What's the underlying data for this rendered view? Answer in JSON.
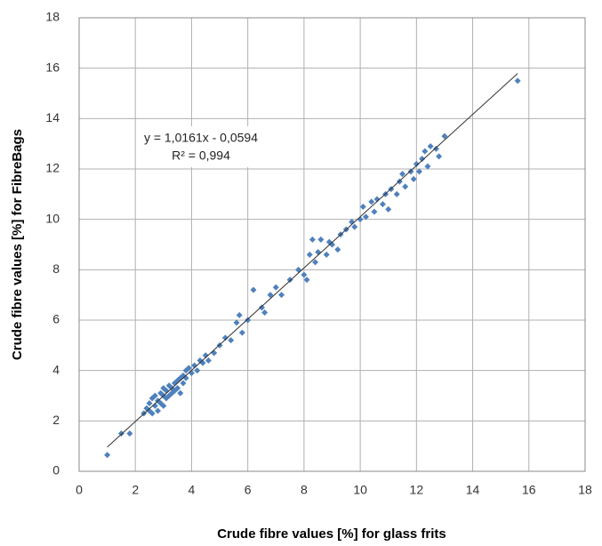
{
  "chart_data": {
    "type": "scatter",
    "x_label": "Crude fibre values [%] for glass frits",
    "y_label": "Crude fibre values [%] for FibreBags",
    "annotation": [
      "y = 1,0161x - 0,0594",
      "R² = 0,994"
    ],
    "color": "#4f81bd",
    "grid": true,
    "xlim": [
      0,
      18
    ],
    "ylim": [
      0,
      18
    ],
    "xticks": [
      0,
      2,
      4,
      6,
      8,
      10,
      12,
      14,
      16,
      18
    ],
    "yticks": [
      0,
      2,
      4,
      6,
      8,
      10,
      12,
      14,
      16,
      18
    ],
    "x": [
      1.0,
      1.5,
      1.8,
      2.3,
      2.4,
      2.5,
      2.5,
      2.6,
      2.6,
      2.7,
      2.7,
      2.8,
      2.8,
      2.9,
      2.9,
      3.0,
      3.0,
      3.0,
      3.1,
      3.1,
      3.2,
      3.2,
      3.3,
      3.3,
      3.4,
      3.4,
      3.5,
      3.5,
      3.6,
      3.6,
      3.7,
      3.7,
      3.8,
      3.8,
      3.9,
      4.0,
      4.1,
      4.2,
      4.3,
      4.4,
      4.5,
      4.6,
      4.8,
      5.0,
      5.2,
      5.4,
      5.6,
      5.7,
      5.8,
      6.0,
      6.2,
      6.5,
      6.6,
      6.8,
      7.0,
      7.2,
      7.5,
      7.8,
      8.0,
      8.1,
      8.2,
      8.3,
      8.4,
      8.5,
      8.6,
      8.8,
      8.9,
      9.0,
      9.2,
      9.3,
      9.5,
      9.7,
      9.8,
      10.0,
      10.1,
      10.2,
      10.4,
      10.5,
      10.6,
      10.8,
      10.9,
      11.0,
      11.1,
      11.3,
      11.4,
      11.5,
      11.6,
      11.8,
      11.9,
      12.0,
      12.1,
      12.2,
      12.3,
      12.4,
      12.5,
      12.7,
      12.8,
      13.0,
      15.6
    ],
    "values": [
      0.65,
      1.5,
      1.5,
      2.3,
      2.5,
      2.4,
      2.7,
      2.9,
      2.3,
      2.6,
      3.0,
      2.4,
      2.8,
      3.1,
      2.7,
      3.0,
      3.3,
      2.6,
      3.2,
      2.9,
      3.4,
      3.0,
      3.3,
      3.1,
      3.5,
      3.2,
      3.6,
      3.3,
      3.7,
      3.1,
      3.8,
      3.5,
      4.0,
      3.7,
      4.1,
      3.9,
      4.2,
      4.0,
      4.4,
      4.3,
      4.6,
      4.4,
      4.7,
      5.0,
      5.3,
      5.2,
      5.9,
      6.2,
      5.5,
      6.0,
      7.2,
      6.5,
      6.3,
      7.0,
      7.3,
      7.0,
      7.6,
      8.0,
      7.8,
      7.6,
      8.6,
      9.2,
      8.3,
      8.7,
      9.2,
      8.6,
      9.1,
      9.0,
      8.8,
      9.4,
      9.6,
      9.9,
      9.7,
      10.0,
      10.5,
      10.1,
      10.7,
      10.3,
      10.8,
      10.6,
      11.0,
      10.4,
      11.2,
      11.0,
      11.5,
      11.8,
      11.3,
      11.9,
      11.6,
      12.2,
      11.9,
      12.4,
      12.7,
      12.1,
      12.9,
      12.8,
      12.5,
      13.3,
      15.5
    ],
    "trendline": {
      "x": [
        1.0,
        15.6
      ],
      "y": [
        0.96,
        15.79
      ]
    }
  }
}
